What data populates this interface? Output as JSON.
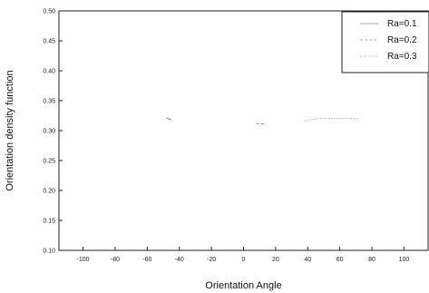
{
  "chart_data": {
    "type": "line",
    "title": "",
    "xlabel": "Orientation Angle",
    "ylabel": "Orientation density function",
    "xlim": [
      -115,
      115
    ],
    "ylim": [
      0.1,
      0.5
    ],
    "x_ticks": [
      -100,
      -80,
      -60,
      -40,
      -20,
      0,
      20,
      40,
      60,
      80,
      100
    ],
    "x_tick_labels": [
      "-100",
      "-80",
      "-60",
      "-40",
      "-20",
      "0",
      "20",
      "40",
      "60",
      "80",
      "100"
    ],
    "y_ticks": [
      0.1,
      0.15,
      0.2,
      0.25,
      0.3,
      0.35,
      0.4,
      0.45,
      0.5
    ],
    "y_tick_labels": [
      "0.10",
      "0.15",
      "0.20",
      "0.25",
      "0.30",
      "0.35",
      "0.40",
      "0.45",
      "0.50"
    ],
    "grid": false,
    "legend_position": "top-right",
    "series": [
      {
        "name": "Ra=0.1",
        "x": [
          -48,
          -46,
          -45
        ],
        "y": [
          0.321,
          0.319,
          0.318
        ]
      },
      {
        "name": "Ra=0.2",
        "x": [
          8,
          11,
          14
        ],
        "y": [
          0.312,
          0.311,
          0.312
        ]
      },
      {
        "name": "Ra=0.3",
        "x": [
          38,
          40,
          42,
          44,
          46,
          72
        ],
        "y": [
          0.316,
          0.317,
          0.318,
          0.319,
          0.32,
          0.32
        ]
      }
    ]
  }
}
